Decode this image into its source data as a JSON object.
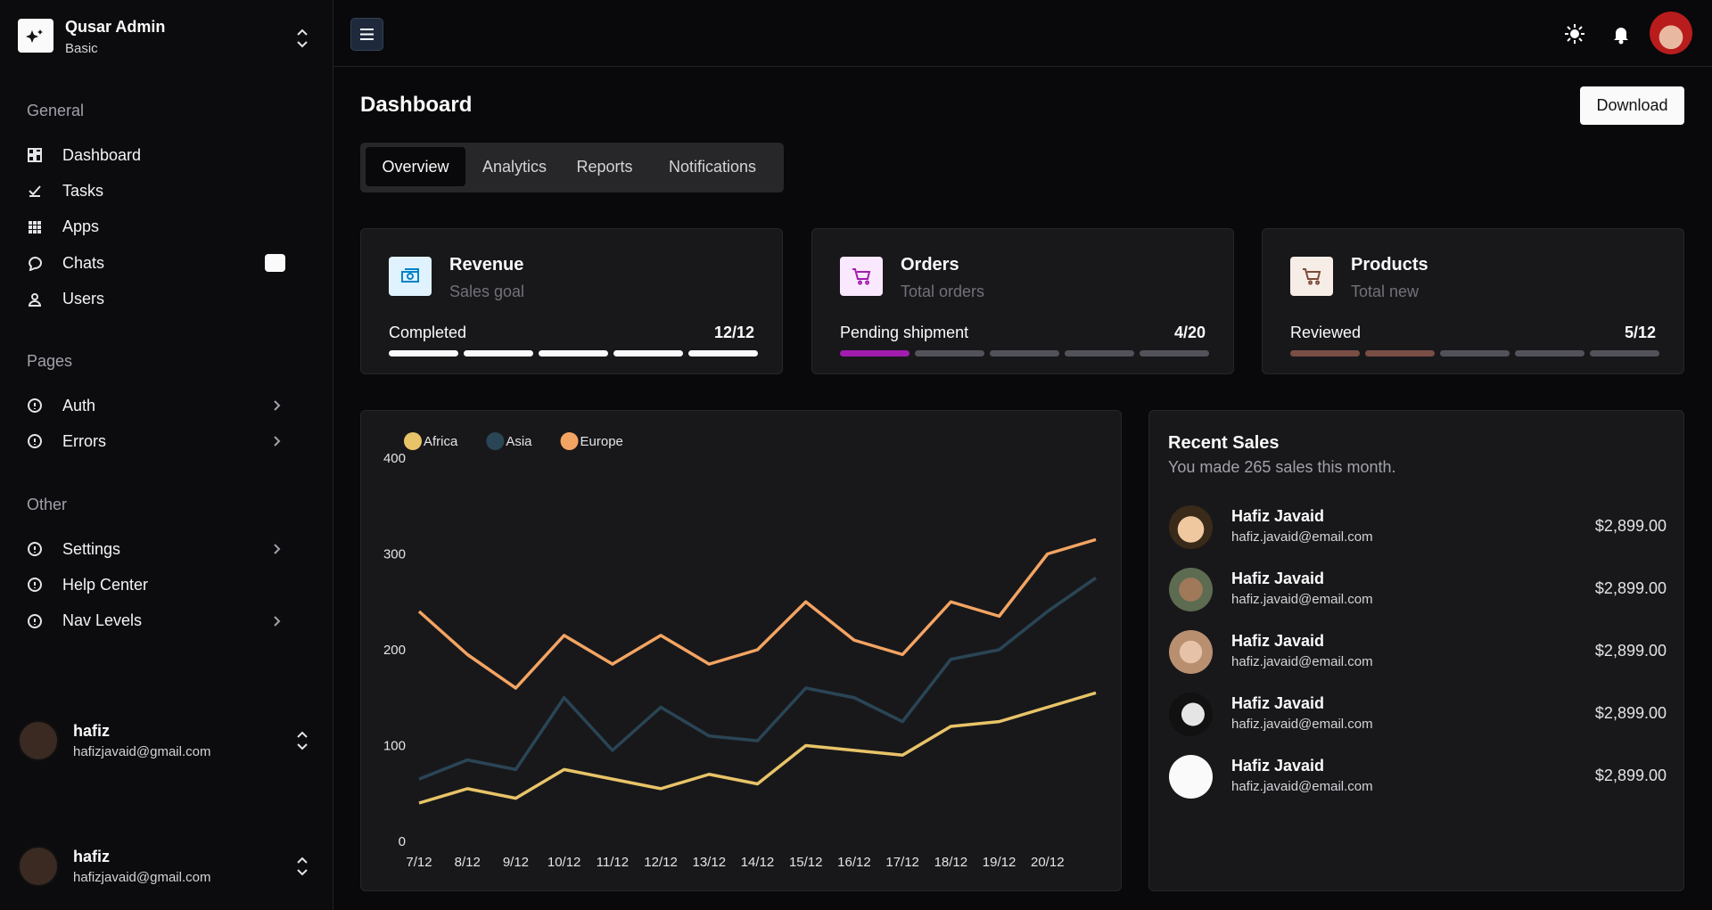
{
  "sidebar": {
    "brand": {
      "title": "Qusar Admin",
      "subtitle": "Basic"
    },
    "groups": [
      {
        "title": "General",
        "items": [
          "Dashboard",
          "Tasks",
          "Apps",
          "Chats",
          "Users"
        ]
      },
      {
        "title": "Pages",
        "items": [
          "Auth",
          "Errors"
        ]
      },
      {
        "title": "Other",
        "items": [
          "Settings",
          "Help Center",
          "Nav Levels"
        ]
      }
    ],
    "users": [
      {
        "name": "hafiz",
        "email": "hafizjavaid@gmail.com"
      },
      {
        "name": "hafiz",
        "email": "hafizjavaid@gmail.com"
      }
    ]
  },
  "header": {
    "title": "Dashboard",
    "button": "Download",
    "tabs": [
      "Overview",
      "Analytics",
      "Reports",
      "Notifications"
    ]
  },
  "cards": [
    {
      "title": "Revenue",
      "subtitle": "Sales goal",
      "label": "Completed",
      "progress": "12/12"
    },
    {
      "title": "Orders",
      "subtitle": "Total orders",
      "label": "Pending shipment",
      "progress": "4/20"
    },
    {
      "title": "Products",
      "subtitle": "Total new",
      "label": "Reviewed",
      "progress": "5/12"
    }
  ],
  "chart_data": {
    "type": "line",
    "categories": [
      "7/12",
      "8/12",
      "9/12",
      "10/12",
      "11/12",
      "12/12",
      "13/12",
      "14/12",
      "15/12",
      "16/12",
      "17/12",
      "18/12",
      "19/12",
      "20/12",
      null
    ],
    "series": [
      {
        "name": "Africa",
        "color": "#e8c468",
        "values": [
          40,
          55,
          45,
          75,
          65,
          55,
          70,
          60,
          100,
          95,
          90,
          120,
          125,
          140,
          155
        ]
      },
      {
        "name": "Asia",
        "color": "#2a4555",
        "values": [
          65,
          85,
          75,
          150,
          95,
          140,
          110,
          105,
          160,
          150,
          125,
          190,
          200,
          240,
          275
        ]
      },
      {
        "name": "Europe",
        "color": "#f4a462",
        "values": [
          240,
          195,
          160,
          215,
          185,
          215,
          185,
          200,
          250,
          210,
          195,
          250,
          235,
          300,
          315
        ]
      }
    ],
    "ylim": [
      0,
      400
    ],
    "yticks": [
      0,
      100,
      200,
      300,
      400
    ],
    "grid": false,
    "legend": "top-left"
  },
  "sales": {
    "title": "Recent Sales",
    "subtitle": "You made 265 sales this month.",
    "rows": [
      {
        "name": "Hafiz Javaid",
        "email": "hafiz.javaid@email.com",
        "amount": "$2,899.00"
      },
      {
        "name": "Hafiz Javaid",
        "email": "hafiz.javaid@email.com",
        "amount": "$2,899.00"
      },
      {
        "name": "Hafiz Javaid",
        "email": "hafiz.javaid@email.com",
        "amount": "$2,899.00"
      },
      {
        "name": "Hafiz Javaid",
        "email": "hafiz.javaid@email.com",
        "amount": "$2,899.00"
      },
      {
        "name": "Hafiz Javaid",
        "email": "hafiz.javaid@email.com",
        "amount": "$2,899.00"
      }
    ]
  }
}
